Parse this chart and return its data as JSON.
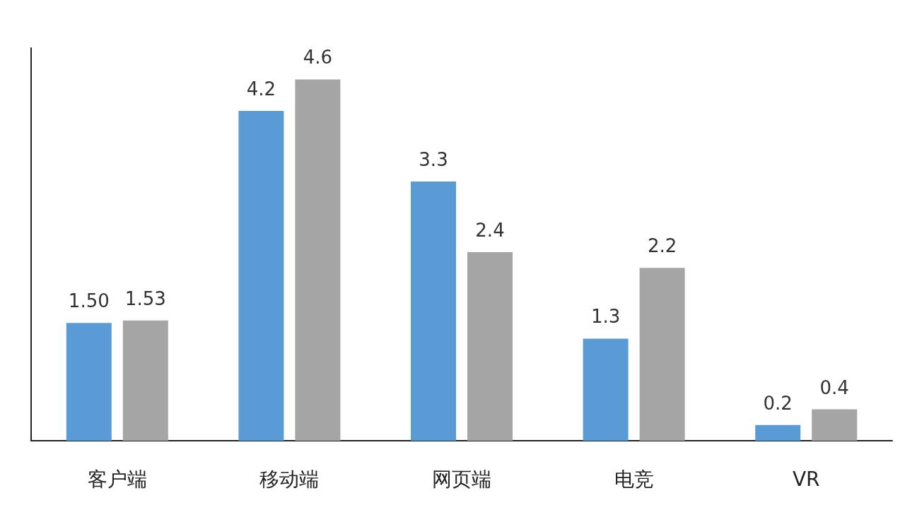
{
  "chart_data": {
    "type": "bar",
    "categories": [
      "客户端",
      "移动端",
      "网页端",
      "电竞",
      "VR"
    ],
    "series": [
      {
        "color": "#5b9bd5",
        "values": [
          1.5,
          4.2,
          3.3,
          1.3,
          0.2
        ],
        "value_labels": [
          "1.50",
          "4.2",
          "3.3",
          "1.3",
          "0.2"
        ]
      },
      {
        "color": "#a5a5a5",
        "values": [
          1.53,
          4.6,
          2.4,
          2.2,
          0.4
        ],
        "value_labels": [
          "1.53",
          "4.6",
          "2.4",
          "2.2",
          "0.4"
        ]
      }
    ],
    "tick_labels": "x"
  }
}
